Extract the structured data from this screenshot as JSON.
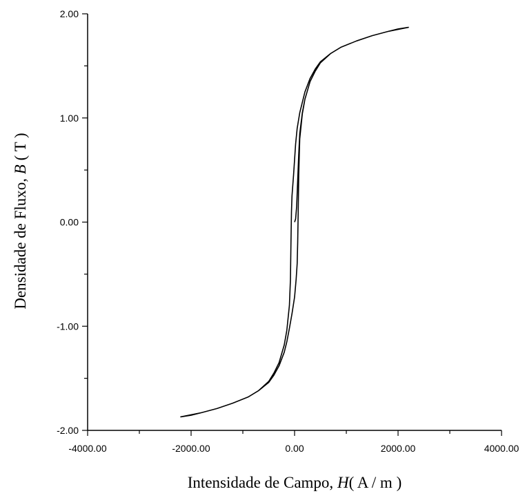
{
  "chart_data": {
    "type": "line",
    "title": "",
    "xlabel": {
      "prefix": "Intensidade de Campo, ",
      "symbol": "H",
      "unit": "( A / m )"
    },
    "ylabel": {
      "prefix": "Densidade de Fluxo, ",
      "symbol": "B",
      "unit": " ( T )"
    },
    "xlim": [
      -4000,
      4000
    ],
    "ylim": [
      -2,
      2
    ],
    "x_ticks": [
      -4000,
      -2000,
      0,
      2000,
      4000
    ],
    "x_tick_labels": [
      "-4000.00",
      "-2000.00",
      "0.00",
      "2000.00",
      "4000.00"
    ],
    "x_minor_ticks": [
      -3000,
      -1000,
      1000,
      3000
    ],
    "y_ticks": [
      -2,
      -1,
      0,
      1,
      2
    ],
    "y_tick_labels": [
      "-2.00",
      "-1.00",
      "0.00",
      "1.00",
      "2.00"
    ],
    "y_minor_ticks": [
      -1.5,
      -0.5,
      0.5,
      1.5
    ],
    "grid": false,
    "line_color": "#000000",
    "series": [
      {
        "x": [
          0,
          20,
          40,
          60,
          80,
          100,
          150,
          200,
          300,
          400,
          500,
          700,
          900,
          1200,
          1500,
          1800,
          2000,
          2200,
          2100,
          1800,
          1500,
          1200,
          900,
          700,
          500,
          400,
          300,
          200,
          100,
          50,
          20,
          0,
          -20,
          -50,
          -60,
          -70,
          -80,
          -100,
          -150,
          -200,
          -300,
          -400,
          -500,
          -700,
          -900,
          -1200,
          -1500,
          -1800,
          -2000,
          -2200,
          -2100,
          -1800,
          -1500,
          -1200,
          -900,
          -700,
          -500,
          -400,
          -300,
          -200,
          -150,
          -100,
          -50,
          0,
          30,
          50,
          60,
          70,
          80,
          100,
          150,
          200,
          300,
          400,
          500,
          700,
          900,
          1200,
          1500,
          1800,
          2000,
          2200
        ],
        "y": [
          0,
          0.03,
          0.15,
          0.4,
          0.65,
          0.85,
          1.05,
          1.18,
          1.35,
          1.45,
          1.53,
          1.62,
          1.68,
          1.74,
          1.79,
          1.83,
          1.855,
          1.87,
          1.86,
          1.83,
          1.79,
          1.74,
          1.68,
          1.62,
          1.54,
          1.47,
          1.38,
          1.25,
          1.05,
          0.9,
          0.75,
          0.6,
          0.45,
          0.25,
          0.1,
          -0.2,
          -0.55,
          -0.8,
          -1.04,
          -1.18,
          -1.35,
          -1.45,
          -1.53,
          -1.62,
          -1.68,
          -1.74,
          -1.79,
          -1.83,
          -1.855,
          -1.87,
          -1.86,
          -1.83,
          -1.79,
          -1.74,
          -1.68,
          -1.62,
          -1.54,
          -1.47,
          -1.38,
          -1.25,
          -1.15,
          -1.02,
          -0.88,
          -0.72,
          -0.55,
          -0.4,
          -0.2,
          0.1,
          0.45,
          0.8,
          1.04,
          1.18,
          1.35,
          1.45,
          1.53,
          1.62,
          1.68,
          1.74,
          1.79,
          1.83,
          1.855,
          1.87
        ]
      }
    ]
  }
}
